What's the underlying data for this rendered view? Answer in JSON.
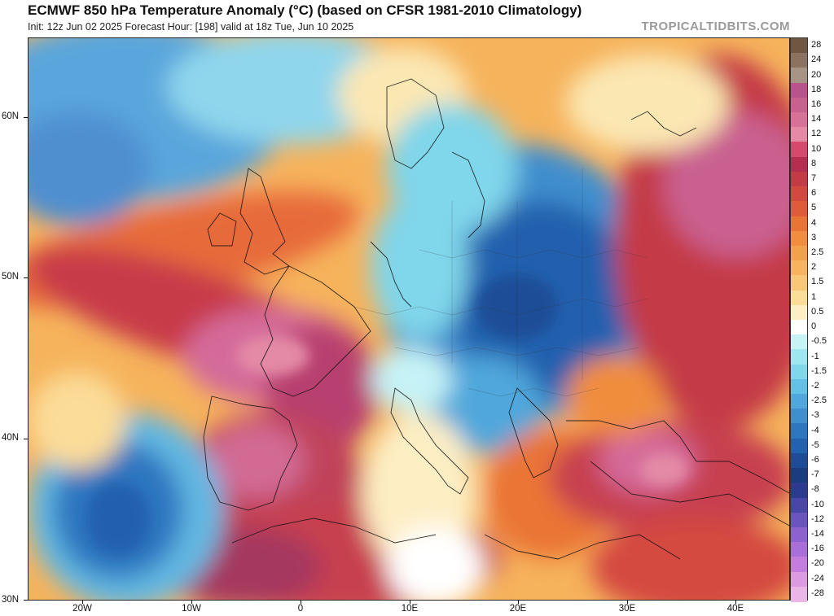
{
  "header": {
    "title": "ECMWF 850 hPa Temperature Anomaly (°C) (based on CFSR 1981-2010 Climatology)",
    "subtitle": "Init: 12z Jun 02 2025   Forecast Hour: [198]   valid at 18z Tue, Jun 10 2025",
    "credit": "TROPICALTIDBITS.COM"
  },
  "axes": {
    "lat_labels": [
      "60N",
      "50N",
      "40N",
      "30N"
    ],
    "lon_labels": [
      "20W",
      "10W",
      "0",
      "10E",
      "20E",
      "30E",
      "40E"
    ]
  },
  "colorbar": {
    "labels": [
      "28",
      "24",
      "20",
      "18",
      "16",
      "14",
      "12",
      "10",
      "8",
      "7",
      "6",
      "5",
      "4",
      "3",
      "2.5",
      "2",
      "1.5",
      "1",
      "0.5",
      "0",
      "-0.5",
      "-1",
      "-1.5",
      "-2",
      "-2.5",
      "-3",
      "-4",
      "-5",
      "-6",
      "-7",
      "-8",
      "-10",
      "-12",
      "-14",
      "-16",
      "-20",
      "-24",
      "-28"
    ],
    "colors": [
      "#6e5844",
      "#8a7361",
      "#a69487",
      "#b8548a",
      "#c9618f",
      "#d77198",
      "#e48aa6",
      "#d6496c",
      "#b52d4f",
      "#c43a47",
      "#d4493f",
      "#e15b39",
      "#ea7434",
      "#f08d3e",
      "#f4a14b",
      "#f7b45e",
      "#f9c877",
      "#fbdc98",
      "#fdeec4",
      "#ffffff",
      "#c6f3f6",
      "#9fe6f0",
      "#80d6ea",
      "#62c1e4",
      "#4fa7db",
      "#3f8ece",
      "#2f76c0",
      "#2461ae",
      "#1c4d96",
      "#1a3d80",
      "#2d3b8f",
      "#4a46a8",
      "#6a54bd",
      "#8c62cf",
      "#a96fd8",
      "#c47ddd",
      "#dc9ae0",
      "#eab6e6"
    ]
  }
}
